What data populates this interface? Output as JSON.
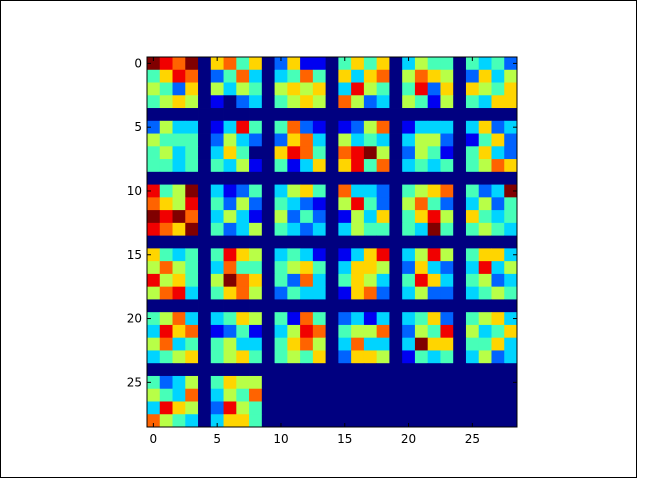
{
  "chart_data": {
    "type": "heatmap",
    "colormap": "jet",
    "clim": [
      0,
      9
    ],
    "xlim": [
      -0.5,
      28.5
    ],
    "ylim": [
      28.5,
      -0.5
    ],
    "xticks": [
      0,
      5,
      10,
      15,
      20,
      25
    ],
    "yticks": [
      0,
      5,
      10,
      15,
      20,
      25
    ],
    "values": [
      [
        9,
        8,
        7,
        9,
        0,
        6,
        7,
        4,
        6,
        0,
        2,
        6,
        1,
        1,
        0,
        4,
        6,
        4,
        6,
        0,
        3,
        5,
        4,
        4,
        0,
        4,
        3,
        4,
        2
      ],
      [
        4,
        6,
        8,
        7,
        0,
        2,
        4,
        7,
        3,
        0,
        3,
        4,
        7,
        4,
        0,
        6,
        3,
        6,
        7,
        0,
        5,
        7,
        6,
        5,
        0,
        2,
        6,
        3,
        5
      ],
      [
        5,
        4,
        2,
        6,
        0,
        5,
        3,
        5,
        4,
        0,
        5,
        6,
        5,
        6,
        0,
        3,
        8,
        5,
        4,
        0,
        4,
        8,
        2,
        6,
        0,
        6,
        5,
        4,
        6
      ],
      [
        4,
        5,
        6,
        5,
        0,
        1,
        0,
        2,
        3,
        0,
        4,
        5,
        6,
        5,
        0,
        7,
        5,
        2,
        3,
        0,
        5,
        4,
        1,
        5,
        0,
        4,
        3,
        6,
        6
      ],
      [
        0,
        0,
        0,
        0,
        0,
        0,
        0,
        0,
        0,
        0,
        0,
        0,
        0,
        0,
        0,
        0,
        0,
        0,
        0,
        0,
        0,
        0,
        0,
        0,
        0,
        0,
        0,
        0,
        0
      ],
      [
        2,
        5,
        3,
        3,
        0,
        1,
        3,
        8,
        4,
        0,
        4,
        7,
        2,
        1,
        0,
        1,
        2,
        5,
        7,
        0,
        1,
        3,
        3,
        3,
        0,
        3,
        6,
        2,
        3
      ],
      [
        5,
        4,
        4,
        4,
        0,
        2,
        5,
        3,
        2,
        0,
        2,
        6,
        7,
        3,
        0,
        5,
        3,
        4,
        3,
        0,
        3,
        5,
        5,
        2,
        0,
        1,
        4,
        6,
        2
      ],
      [
        4,
        5,
        3,
        4,
        0,
        3,
        6,
        4,
        0,
        0,
        6,
        8,
        7,
        4,
        0,
        7,
        8,
        9,
        5,
        0,
        2,
        5,
        4,
        1,
        0,
        4,
        6,
        3,
        2
      ],
      [
        4,
        4,
        3,
        4,
        0,
        4,
        3,
        5,
        1,
        0,
        4,
        1,
        3,
        6,
        0,
        6,
        8,
        4,
        7,
        0,
        3,
        4,
        3,
        4,
        0,
        4,
        5,
        7,
        6
      ],
      [
        0,
        0,
        0,
        0,
        0,
        0,
        0,
        0,
        0,
        0,
        0,
        0,
        0,
        0,
        0,
        0,
        0,
        0,
        0,
        0,
        0,
        0,
        0,
        0,
        0,
        0,
        0,
        0,
        0
      ],
      [
        8,
        4,
        5,
        9,
        0,
        3,
        1,
        2,
        4,
        0,
        3,
        5,
        6,
        4,
        0,
        7,
        3,
        3,
        2,
        0,
        4,
        5,
        6,
        7,
        0,
        4,
        2,
        3,
        9
      ],
      [
        7,
        6,
        5,
        8,
        0,
        4,
        2,
        5,
        2,
        0,
        4,
        3,
        2,
        1,
        0,
        5,
        8,
        4,
        2,
        0,
        5,
        7,
        4,
        2,
        0,
        3,
        5,
        2,
        4
      ],
      [
        9,
        8,
        9,
        7,
        0,
        3,
        5,
        3,
        1,
        0,
        5,
        2,
        4,
        2,
        0,
        1,
        5,
        3,
        6,
        0,
        4,
        6,
        8,
        5,
        0,
        6,
        4,
        3,
        4
      ],
      [
        8,
        7,
        6,
        9,
        0,
        4,
        2,
        3,
        5,
        0,
        4,
        3,
        2,
        3,
        0,
        3,
        5,
        4,
        4,
        0,
        4,
        3,
        9,
        4,
        0,
        4,
        5,
        4,
        3
      ],
      [
        0,
        0,
        0,
        0,
        0,
        0,
        0,
        0,
        0,
        0,
        0,
        0,
        0,
        0,
        0,
        0,
        0,
        0,
        0,
        0,
        0,
        0,
        0,
        0,
        0,
        0,
        0,
        0,
        0
      ],
      [
        6,
        4,
        3,
        4,
        0,
        4,
        8,
        6,
        5,
        0,
        3,
        4,
        3,
        1,
        0,
        1,
        3,
        6,
        8,
        0,
        3,
        5,
        8,
        5,
        0,
        4,
        6,
        6,
        3
      ],
      [
        5,
        7,
        5,
        4,
        0,
        3,
        7,
        4,
        4,
        0,
        4,
        5,
        6,
        4,
        0,
        3,
        6,
        6,
        5,
        0,
        2,
        6,
        3,
        2,
        0,
        3,
        8,
        3,
        5
      ],
      [
        8,
        5,
        6,
        4,
        0,
        5,
        9,
        7,
        6,
        0,
        4,
        2,
        7,
        3,
        0,
        4,
        6,
        5,
        3,
        0,
        4,
        8,
        6,
        3,
        0,
        4,
        5,
        2,
        3
      ],
      [
        5,
        7,
        8,
        3,
        0,
        4,
        6,
        7,
        5,
        0,
        2,
        4,
        3,
        3,
        0,
        1,
        6,
        7,
        2,
        0,
        3,
        5,
        2,
        2,
        0,
        3,
        4,
        5,
        4
      ],
      [
        0,
        0,
        0,
        0,
        0,
        0,
        0,
        0,
        0,
        0,
        0,
        0,
        0,
        0,
        0,
        0,
        0,
        0,
        0,
        0,
        0,
        0,
        0,
        0,
        0,
        0,
        0,
        0,
        0
      ],
      [
        4,
        5,
        7,
        3,
        0,
        3,
        4,
        6,
        5,
        0,
        4,
        1,
        7,
        4,
        0,
        2,
        3,
        1,
        3,
        0,
        3,
        4,
        6,
        2,
        0,
        4,
        5,
        6,
        3
      ],
      [
        3,
        8,
        6,
        7,
        0,
        1,
        2,
        4,
        1,
        0,
        3,
        5,
        8,
        7,
        0,
        4,
        5,
        5,
        7,
        0,
        2,
        5,
        4,
        8,
        0,
        5,
        3,
        4,
        6
      ],
      [
        5,
        7,
        3,
        4,
        0,
        4,
        5,
        3,
        3,
        0,
        4,
        6,
        7,
        5,
        0,
        3,
        7,
        3,
        3,
        0,
        3,
        9,
        6,
        6,
        0,
        4,
        4,
        6,
        3
      ],
      [
        3,
        4,
        5,
        6,
        0,
        4,
        5,
        6,
        4,
        0,
        4,
        5,
        4,
        6,
        0,
        2,
        6,
        6,
        5,
        0,
        1,
        4,
        3,
        4,
        0,
        3,
        5,
        2,
        3
      ],
      [
        0,
        0,
        0,
        0,
        0,
        0,
        0,
        0,
        0,
        0,
        0,
        0,
        0,
        0,
        0,
        0,
        0,
        0,
        0,
        0,
        0,
        0,
        0,
        0,
        0,
        0,
        0,
        0,
        0
      ],
      [
        4,
        2,
        3,
        5,
        0,
        4,
        6,
        5,
        5,
        0,
        0,
        0,
        0,
        0,
        0,
        0,
        0,
        0,
        0,
        0,
        0,
        0,
        0,
        0,
        0,
        0,
        0,
        0,
        0
      ],
      [
        5,
        4,
        3,
        7,
        0,
        3,
        5,
        4,
        7,
        0,
        0,
        0,
        0,
        0,
        0,
        0,
        0,
        0,
        0,
        0,
        0,
        0,
        0,
        0,
        0,
        0,
        0,
        0,
        0
      ],
      [
        3,
        8,
        6,
        5,
        0,
        2,
        8,
        5,
        4,
        0,
        0,
        0,
        0,
        0,
        0,
        0,
        0,
        0,
        0,
        0,
        0,
        0,
        0,
        0,
        0,
        0,
        0,
        0,
        0
      ],
      [
        7,
        5,
        4,
        3,
        0,
        3,
        6,
        6,
        4,
        0,
        0,
        0,
        0,
        0,
        0,
        0,
        0,
        0,
        0,
        0,
        0,
        0,
        0,
        0,
        0,
        0,
        0,
        0,
        0
      ]
    ]
  }
}
